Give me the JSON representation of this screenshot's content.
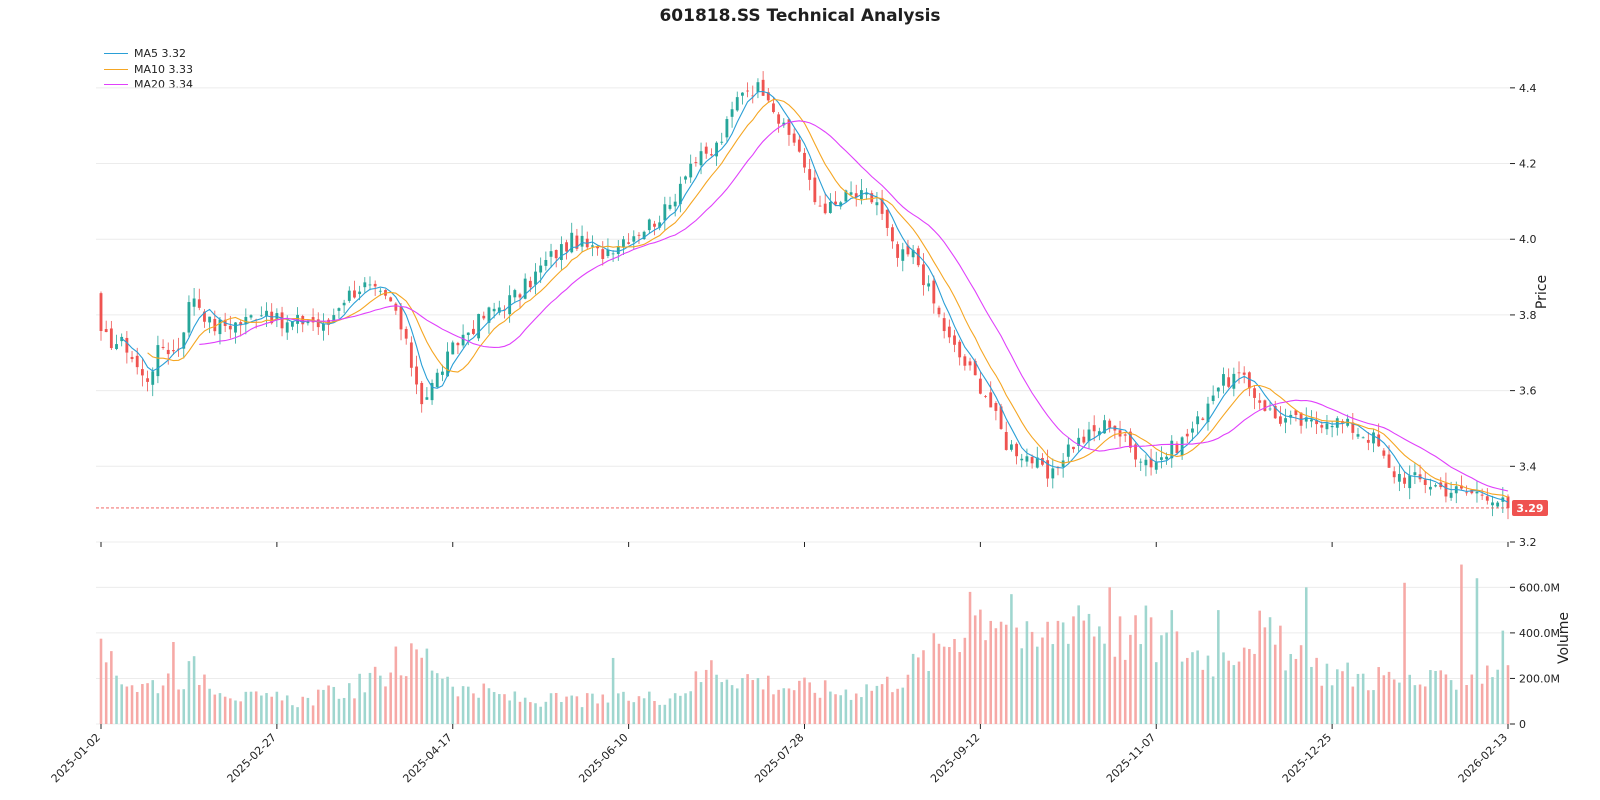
{
  "colors": {
    "up": "#26a69a",
    "down": "#ef5350",
    "ma5": "#2a9fd6",
    "ma10": "#f5a623",
    "ma20": "#e040fb",
    "grid": "#ececec",
    "price_line": "#ef5350"
  },
  "chart_data": {
    "type": "candlestick",
    "title": "601818.SS Technical Analysis",
    "legend": [
      {
        "name": "MA5",
        "value": "3.32",
        "color_key": "ma5"
      },
      {
        "name": "MA10",
        "value": "3.33",
        "color_key": "ma10"
      },
      {
        "name": "MA20",
        "value": "3.34",
        "color_key": "ma20"
      }
    ],
    "legend_position": "top-left",
    "price_axis": {
      "label": "Price",
      "ylim": [
        3.2,
        4.5
      ],
      "ticks": [
        3.2,
        3.4,
        3.6,
        3.8,
        4.0,
        4.2,
        4.4
      ],
      "tick_labels": [
        "3.2",
        "3.4",
        "3.6",
        "3.8",
        "4.0",
        "4.2",
        "4.4"
      ]
    },
    "volume_axis": {
      "label": "Volume",
      "ylim": [
        0,
        720
      ],
      "unit": "M",
      "ticks": [
        0,
        200,
        400,
        600
      ],
      "tick_labels": [
        "0",
        "200.0M",
        "400.0M",
        "600.0M"
      ]
    },
    "last_price": {
      "value": 3.29,
      "label": "3.29"
    },
    "x_tick_labels": [
      "2025-01-02",
      "2025-02-27",
      "2025-04-17",
      "2025-06-10",
      "2025-07-28",
      "2025-09-12",
      "2025-11-07",
      "2025-12-25",
      "2026-02-13"
    ],
    "n_bars": 273,
    "price_path": [
      [
        0,
        3.74
      ],
      [
        8,
        3.72
      ],
      [
        14,
        3.62
      ],
      [
        19,
        3.72
      ],
      [
        24,
        3.7
      ],
      [
        29,
        3.86
      ],
      [
        35,
        3.77
      ],
      [
        45,
        3.78
      ],
      [
        52,
        3.82
      ],
      [
        57,
        3.77
      ],
      [
        66,
        3.79
      ],
      [
        71,
        3.76
      ],
      [
        76,
        3.84
      ],
      [
        83,
        3.88
      ],
      [
        93,
        3.82
      ],
      [
        102,
        3.57
      ],
      [
        108,
        3.66
      ],
      [
        114,
        3.74
      ],
      [
        122,
        3.8
      ],
      [
        133,
        3.86
      ],
      [
        142,
        3.95
      ],
      [
        150,
        4.0
      ],
      [
        158,
        3.96
      ],
      [
        165,
        4.0
      ],
      [
        172,
        4.03
      ],
      [
        180,
        4.08
      ],
      [
        186,
        4.2
      ],
      [
        193,
        4.22
      ],
      [
        197,
        4.27
      ],
      [
        203,
        4.4
      ],
      [
        211,
        4.4
      ],
      [
        216,
        4.29
      ],
      [
        221,
        4.25
      ],
      [
        226,
        4.1
      ],
      [
        232,
        4.08
      ],
      [
        237,
        4.12
      ],
      [
        246,
        4.1
      ],
      [
        252,
        3.95
      ],
      [
        258,
        3.96
      ],
      [
        263,
        3.85
      ],
      [
        269,
        3.73
      ],
      [
        273,
        3.68
      ],
      [
        280,
        3.6
      ],
      [
        287,
        3.46
      ],
      [
        295,
        3.42
      ],
      [
        301,
        3.36
      ],
      [
        306,
        3.45
      ],
      [
        313,
        3.48
      ],
      [
        320,
        3.52
      ],
      [
        326,
        3.45
      ],
      [
        333,
        3.41
      ],
      [
        337,
        3.43
      ],
      [
        343,
        3.47
      ],
      [
        348,
        3.52
      ],
      [
        353,
        3.61
      ],
      [
        360,
        3.64
      ],
      [
        366,
        3.59
      ],
      [
        372,
        3.53
      ],
      [
        383,
        3.51
      ],
      [
        389,
        3.53
      ],
      [
        397,
        3.5
      ],
      [
        404,
        3.47
      ],
      [
        408,
        3.39
      ],
      [
        414,
        3.37
      ],
      [
        420,
        3.36
      ],
      [
        426,
        3.34
      ],
      [
        433,
        3.33
      ],
      [
        440,
        3.33
      ],
      [
        446,
        3.29
      ]
    ],
    "volume_path": [
      [
        0,
        310
      ],
      [
        12,
        170
      ],
      [
        30,
        250
      ],
      [
        45,
        120
      ],
      [
        65,
        110
      ],
      [
        85,
        190
      ],
      [
        102,
        330
      ],
      [
        115,
        160
      ],
      [
        135,
        110
      ],
      [
        160,
        110
      ],
      [
        180,
        130
      ],
      [
        195,
        250
      ],
      [
        215,
        180
      ],
      [
        235,
        150
      ],
      [
        250,
        190
      ],
      [
        265,
        340
      ],
      [
        275,
        500
      ],
      [
        285,
        550
      ],
      [
        295,
        340
      ],
      [
        310,
        560
      ],
      [
        320,
        420
      ],
      [
        335,
        380
      ],
      [
        355,
        300
      ],
      [
        365,
        450
      ],
      [
        380,
        280
      ],
      [
        395,
        230
      ],
      [
        410,
        200
      ],
      [
        425,
        190
      ],
      [
        435,
        240
      ],
      [
        446,
        280
      ]
    ],
    "volume_spikes": [
      [
        3,
        320
      ],
      [
        25,
        360
      ],
      [
        105,
        340
      ],
      [
        180,
        290
      ],
      [
        215,
        280
      ],
      [
        307,
        580
      ],
      [
        322,
        570
      ],
      [
        356,
        600
      ],
      [
        370,
        520
      ],
      [
        378,
        500
      ],
      [
        395,
        500
      ],
      [
        425,
        600
      ],
      [
        460,
        620
      ],
      [
        481,
        700
      ],
      [
        486,
        640
      ],
      [
        452,
        250
      ],
      [
        495,
        410
      ]
    ]
  }
}
